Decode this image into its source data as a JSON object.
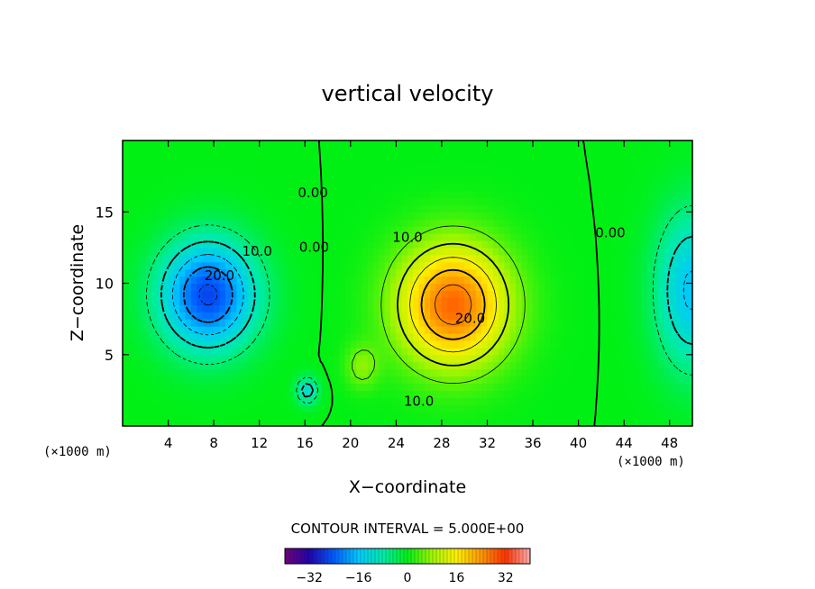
{
  "chart_data": {
    "type": "heatmap",
    "title": "vertical velocity",
    "xlabel": "X−coordinate",
    "ylabel": "Z−coordinate",
    "x_unit_left": "(×1000 m)",
    "x_unit_right": "(×1000 m)",
    "xlim": [
      0,
      50
    ],
    "ylim": [
      0,
      20
    ],
    "x_ticks": [
      4,
      8,
      12,
      16,
      20,
      24,
      28,
      32,
      36,
      40,
      44,
      48
    ],
    "y_ticks": [
      5,
      10,
      15
    ],
    "contour_interval_text": "CONTOUR INTERVAL = 5.000E+00",
    "contour_interval": 5,
    "color_range": [
      -40,
      40
    ],
    "colorbar_ticks": [
      "−32",
      "−16",
      "0",
      "16",
      "32"
    ],
    "colorbar_tick_values": [
      -32,
      -16,
      0,
      16,
      32
    ],
    "contour_labels": [
      {
        "text": "20.0",
        "x": 30.5,
        "y": 7.5
      },
      {
        "text": "10.0",
        "x": 25.0,
        "y": 13.2
      },
      {
        "text": "10.0",
        "x": 26.0,
        "y": 1.7
      },
      {
        "text": "0.00",
        "x": 42.8,
        "y": 13.5
      },
      {
        "text": "0.00",
        "x": 16.8,
        "y": 12.5
      },
      {
        "text": "0.00",
        "x": 16.7,
        "y": 16.3
      },
      {
        "text": "10.0",
        "x": 11.8,
        "y": 12.2
      },
      {
        "text": "20.0",
        "x": 8.5,
        "y": 10.5
      }
    ],
    "features": [
      {
        "kind": "updraft",
        "x": 29,
        "y": 8.5,
        "sx": 4.8,
        "sy": 4.2,
        "amplitude": 28
      },
      {
        "kind": "updraft",
        "x": 21,
        "y": 4.2,
        "sx": 1.4,
        "sy": 1.5,
        "amplitude": 7
      },
      {
        "kind": "downdraft",
        "x": 7.5,
        "y": 9.2,
        "sx": 4.2,
        "sy": 3.8,
        "amplitude": -26
      },
      {
        "kind": "downdraft",
        "x": 50,
        "y": 9.5,
        "sx": 3.2,
        "sy": 5.5,
        "amplitude": -16
      },
      {
        "kind": "downdraft",
        "x": 16.2,
        "y": 2.5,
        "sx": 0.9,
        "sy": 0.9,
        "amplitude": -14
      }
    ]
  }
}
